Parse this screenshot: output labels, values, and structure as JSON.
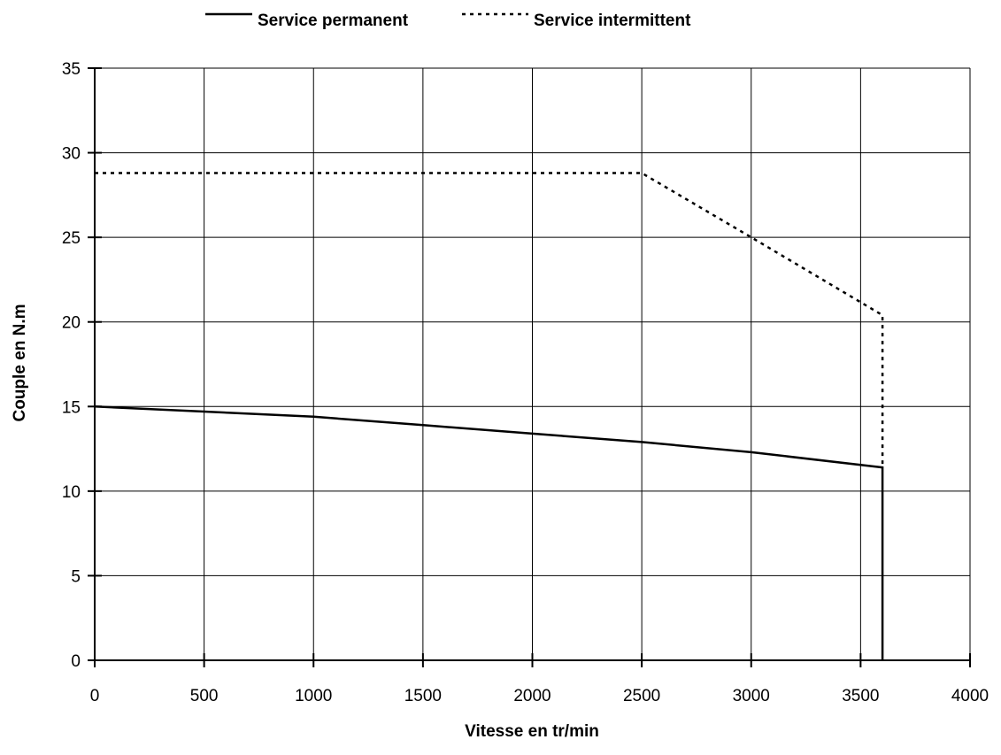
{
  "chart_data": {
    "type": "line",
    "title": "",
    "xlabel": "Vitesse en tr/min",
    "ylabel": "Couple en N.m",
    "xlim": [
      0,
      4000
    ],
    "ylim": [
      0,
      35
    ],
    "xticks": [
      0,
      500,
      1000,
      1500,
      2000,
      2500,
      3000,
      3500,
      4000
    ],
    "yticks": [
      0,
      5,
      10,
      15,
      20,
      25,
      30,
      35
    ],
    "grid": true,
    "legend_position": "top-center",
    "series": [
      {
        "name": "Service permanent",
        "style": "solid",
        "color": "#000000",
        "points": [
          [
            0,
            15.0
          ],
          [
            500,
            14.7
          ],
          [
            1000,
            14.4
          ],
          [
            1500,
            13.9
          ],
          [
            2000,
            13.4
          ],
          [
            2500,
            12.9
          ],
          [
            3000,
            12.3
          ],
          [
            3600,
            11.4
          ],
          [
            3600,
            0
          ]
        ]
      },
      {
        "name": "Service intermittent",
        "style": "dotted",
        "color": "#000000",
        "points": [
          [
            0,
            28.8
          ],
          [
            2500,
            28.8
          ],
          [
            3000,
            25.0
          ],
          [
            3600,
            20.4
          ],
          [
            3600,
            11.4
          ]
        ]
      }
    ]
  }
}
